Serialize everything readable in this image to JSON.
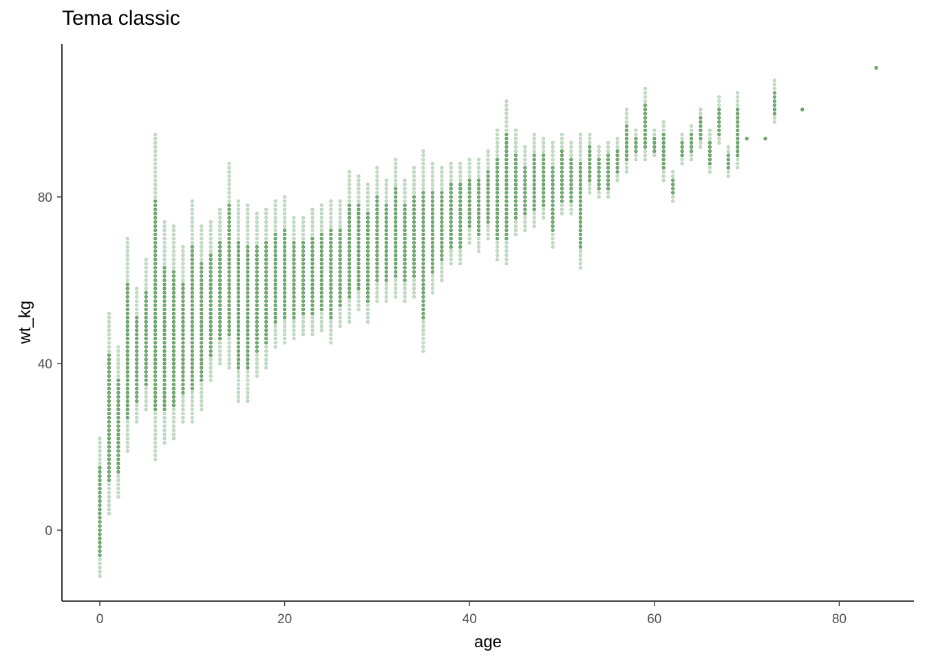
{
  "chart_data": {
    "type": "scatter",
    "title": "Tema classic",
    "xlabel": "age",
    "ylabel": "wt_kg",
    "xlim": [
      -4,
      87
    ],
    "ylim": [
      -17,
      117
    ],
    "x_ticks": [
      0,
      20,
      40,
      60,
      80
    ],
    "y_ticks": [
      0,
      40,
      80
    ],
    "grid": false,
    "point_color": "#006400",
    "summary": [
      {
        "age": 0,
        "min": -11,
        "max": 22
      },
      {
        "age": 1,
        "min": 4,
        "max": 52
      },
      {
        "age": 2,
        "min": 8,
        "max": 44
      },
      {
        "age": 3,
        "min": 19,
        "max": 70
      },
      {
        "age": 4,
        "min": 26,
        "max": 58
      },
      {
        "age": 5,
        "min": 29,
        "max": 65
      },
      {
        "age": 6,
        "min": 17,
        "max": 95
      },
      {
        "age": 7,
        "min": 21,
        "max": 74
      },
      {
        "age": 8,
        "min": 22,
        "max": 73
      },
      {
        "age": 9,
        "min": 26,
        "max": 68
      },
      {
        "age": 10,
        "min": 26,
        "max": 79
      },
      {
        "age": 11,
        "min": 29,
        "max": 73
      },
      {
        "age": 12,
        "min": 36,
        "max": 74
      },
      {
        "age": 13,
        "min": 40,
        "max": 77
      },
      {
        "age": 14,
        "min": 39,
        "max": 88
      },
      {
        "age": 15,
        "min": 31,
        "max": 79
      },
      {
        "age": 16,
        "min": 31,
        "max": 78
      },
      {
        "age": 17,
        "min": 37,
        "max": 76
      },
      {
        "age": 18,
        "min": 39,
        "max": 77
      },
      {
        "age": 19,
        "min": 44,
        "max": 79
      },
      {
        "age": 20,
        "min": 45,
        "max": 80
      },
      {
        "age": 21,
        "min": 46,
        "max": 75
      },
      {
        "age": 22,
        "min": 47,
        "max": 75
      },
      {
        "age": 23,
        "min": 47,
        "max": 77
      },
      {
        "age": 24,
        "min": 48,
        "max": 78
      },
      {
        "age": 25,
        "min": 45,
        "max": 79
      },
      {
        "age": 26,
        "min": 49,
        "max": 79
      },
      {
        "age": 27,
        "min": 50,
        "max": 86
      },
      {
        "age": 28,
        "min": 53,
        "max": 85
      },
      {
        "age": 29,
        "min": 50,
        "max": 83
      },
      {
        "age": 30,
        "min": 55,
        "max": 87
      },
      {
        "age": 31,
        "min": 55,
        "max": 84
      },
      {
        "age": 32,
        "min": 56,
        "max": 89
      },
      {
        "age": 33,
        "min": 55,
        "max": 84
      },
      {
        "age": 34,
        "min": 56,
        "max": 87
      },
      {
        "age": 35,
        "min": 43,
        "max": 91
      },
      {
        "age": 36,
        "min": 57,
        "max": 88
      },
      {
        "age": 37,
        "min": 60,
        "max": 87
      },
      {
        "age": 38,
        "min": 64,
        "max": 88
      },
      {
        "age": 39,
        "min": 64,
        "max": 88
      },
      {
        "age": 40,
        "min": 69,
        "max": 89
      },
      {
        "age": 41,
        "min": 67,
        "max": 89
      },
      {
        "age": 42,
        "min": 70,
        "max": 91
      },
      {
        "age": 43,
        "min": 65,
        "max": 96
      },
      {
        "age": 44,
        "min": 64,
        "max": 103
      },
      {
        "age": 45,
        "min": 71,
        "max": 96
      },
      {
        "age": 46,
        "min": 72,
        "max": 92
      },
      {
        "age": 47,
        "min": 73,
        "max": 95
      },
      {
        "age": 48,
        "min": 75,
        "max": 94
      },
      {
        "age": 49,
        "min": 68,
        "max": 93
      },
      {
        "age": 50,
        "min": 76,
        "max": 95
      },
      {
        "age": 51,
        "min": 76,
        "max": 93
      },
      {
        "age": 52,
        "min": 63,
        "max": 95
      },
      {
        "age": 53,
        "min": 81,
        "max": 95
      },
      {
        "age": 54,
        "min": 80,
        "max": 92
      },
      {
        "age": 55,
        "min": 80,
        "max": 93
      },
      {
        "age": 56,
        "min": 84,
        "max": 94
      },
      {
        "age": 57,
        "min": 86,
        "max": 101
      },
      {
        "age": 58,
        "min": 89,
        "max": 96
      },
      {
        "age": 59,
        "min": 89,
        "max": 106
      },
      {
        "age": 60,
        "min": 90,
        "max": 96
      },
      {
        "age": 61,
        "min": 84,
        "max": 98
      },
      {
        "age": 62,
        "min": 79,
        "max": 86
      },
      {
        "age": 63,
        "min": 88,
        "max": 95
      },
      {
        "age": 64,
        "min": 89,
        "max": 97
      },
      {
        "age": 65,
        "min": 92,
        "max": 101
      },
      {
        "age": 66,
        "min": 86,
        "max": 96
      },
      {
        "age": 67,
        "min": 93,
        "max": 104
      },
      {
        "age": 68,
        "min": 85,
        "max": 92
      },
      {
        "age": 69,
        "min": 87,
        "max": 105
      },
      {
        "age": 70,
        "min": 94,
        "max": 94
      },
      {
        "age": 72,
        "min": 94,
        "max": 94
      },
      {
        "age": 73,
        "min": 98,
        "max": 108
      },
      {
        "age": 76,
        "min": 101,
        "max": 101
      },
      {
        "age": 84,
        "min": 111,
        "max": 111
      }
    ]
  }
}
